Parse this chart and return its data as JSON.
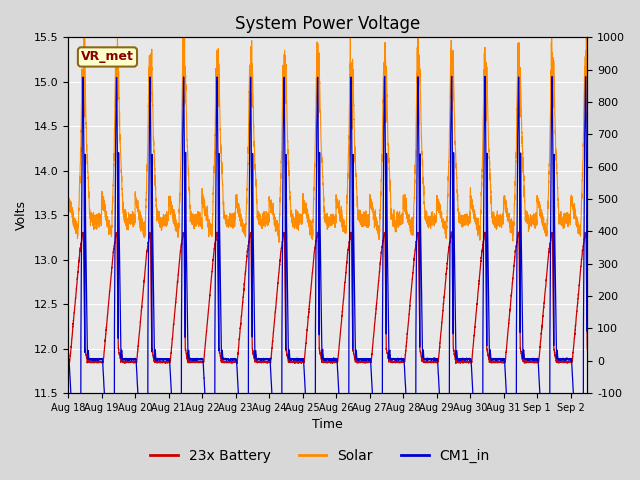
{
  "title": "System Power Voltage",
  "xlabel": "Time",
  "ylabel": "Volts",
  "ylim_left": [
    11.5,
    15.5
  ],
  "ylim_right": [
    -100,
    1000
  ],
  "yticks_left": [
    11.5,
    12.0,
    12.5,
    13.0,
    13.5,
    14.0,
    14.5,
    15.0,
    15.5
  ],
  "yticks_right": [
    -100,
    0,
    100,
    200,
    300,
    400,
    500,
    600,
    700,
    800,
    900,
    1000
  ],
  "ytick_right_labels": [
    "-100",
    "0",
    "100",
    "200",
    "300",
    "400",
    "500",
    "600",
    "700",
    "800",
    "900",
    "1000"
  ],
  "day_labels": [
    "Aug 18",
    "Aug 19",
    "Aug 20",
    "Aug 21",
    "Aug 22",
    "Aug 23",
    "Aug 24",
    "Aug 25",
    "Aug 26",
    "Aug 27",
    "Aug 28",
    "Aug 29",
    "Aug 30",
    "Aug 31",
    "Sep 1",
    "Sep 2"
  ],
  "annotation_text": "VR_met",
  "legend_entries": [
    "23x Battery",
    "Solar",
    "CM1_in"
  ],
  "battery_color": "#cc0000",
  "solar_color": "#ff8c00",
  "cm1_color": "#0000cc",
  "bg_color": "#d8d8d8",
  "plot_bg_color": "#e8e8e8",
  "grid_color": "#ffffff",
  "title_fontsize": 12,
  "label_fontsize": 9,
  "tick_fontsize": 8,
  "total_days": 15.5,
  "n_points": 5000,
  "battery_base": 11.85,
  "battery_peak": 13.3,
  "cm1_base": 11.88,
  "cm1_peak": 15.05,
  "solar_day_base": 13.5,
  "solar_day_peak": 15.2,
  "solar_night_base": 11.9
}
